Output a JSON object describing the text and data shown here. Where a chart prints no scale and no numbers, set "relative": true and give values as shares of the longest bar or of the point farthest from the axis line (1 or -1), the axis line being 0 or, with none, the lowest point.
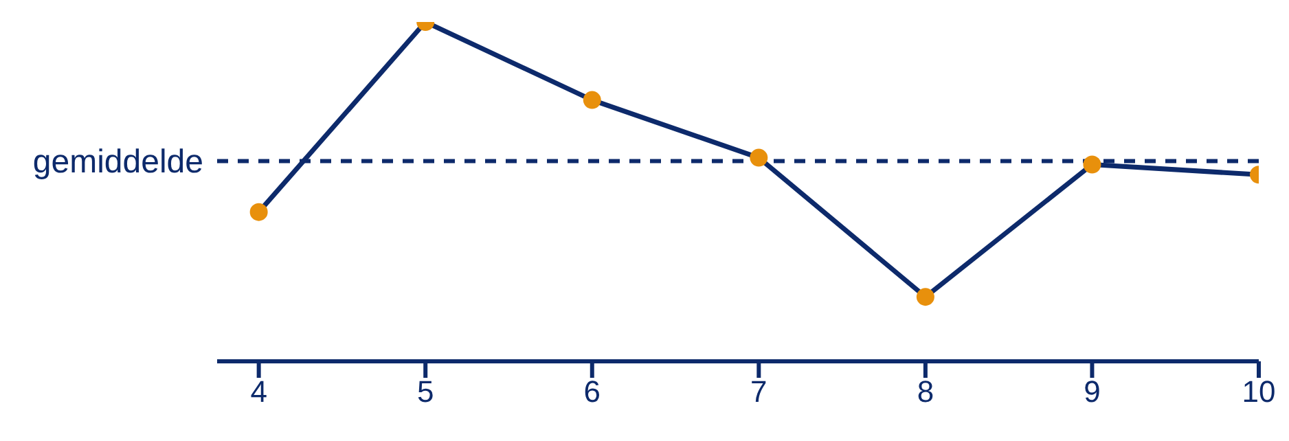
{
  "chart_data": {
    "type": "line",
    "relative": true,
    "x": [
      4,
      5,
      6,
      7,
      8,
      9,
      10
    ],
    "xlim": [
      3.75,
      10
    ],
    "xticks": [
      4,
      5,
      6,
      7,
      8,
      9,
      10
    ],
    "series": [
      {
        "color": "#0d2a6b",
        "colors": [
          "#e8900c",
          "#e8900c",
          "#e8900c",
          "#e8900c",
          "#e8900c",
          "#e8900c",
          "#e8900c"
        ],
        "values": [
          0.44,
          1,
          0.77,
          0.6,
          0.19,
          0.58,
          0.55
        ]
      }
    ],
    "marker": "circle",
    "line_style": "solid",
    "ref_lines": [
      {
        "axis": "y",
        "value": 0.59,
        "label": "gemiddelde",
        "color": "#0d2a6b",
        "line_style": "dashed"
      }
    ]
  }
}
